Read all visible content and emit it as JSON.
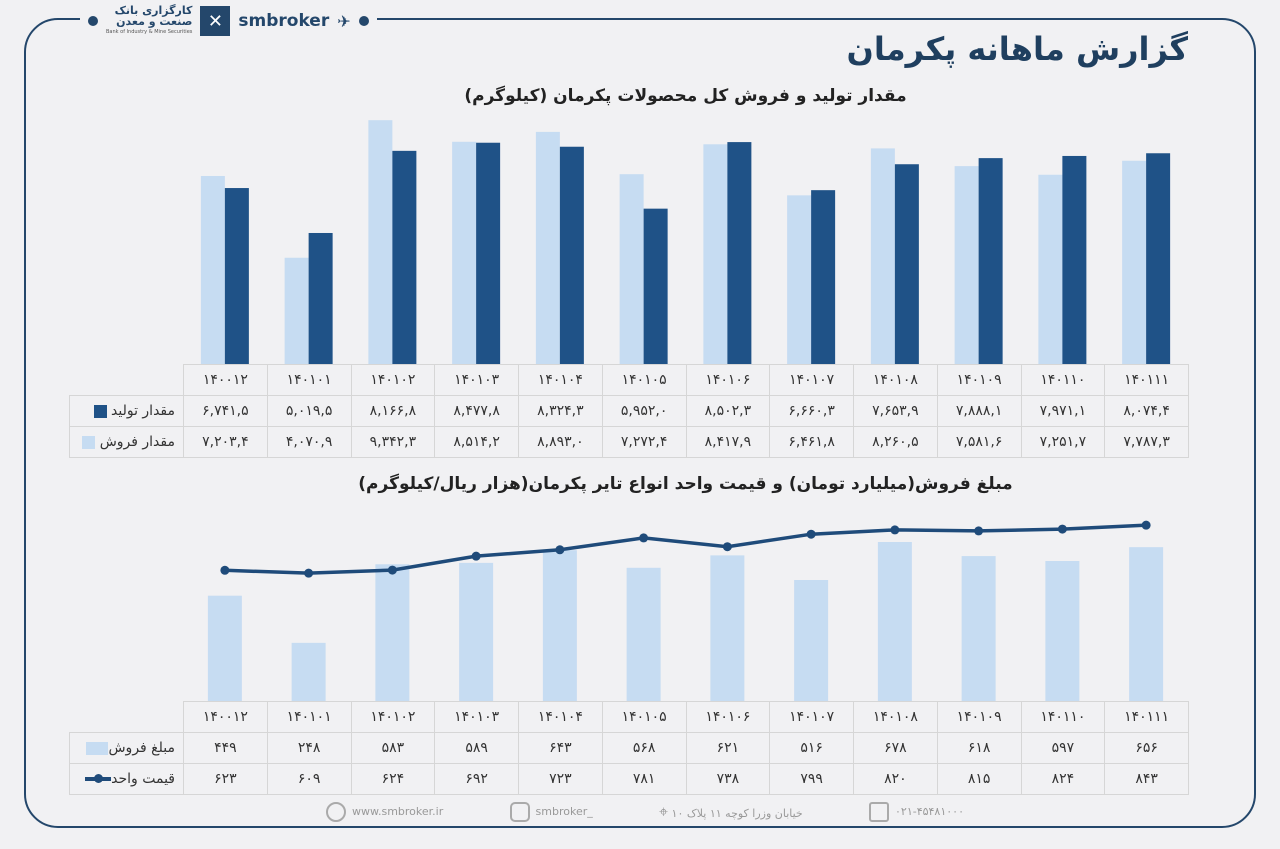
{
  "header": {
    "title": "گزارش ماهانه پکرمان",
    "brand": "smbroker",
    "bank_name_1": "کارگزاری بانک",
    "bank_name_2": "صنعت و معدن",
    "bank_name_en": "Bank of Industry & Mine Securities"
  },
  "colors": {
    "dark": "#1f5287",
    "light": "#c6dcf2",
    "line": "#1f4b7a",
    "frame": "#24476b"
  },
  "chart1": {
    "title": "مقدار تولید و فروش کل محصولات پکرمان (کیلوگرم)",
    "months": [
      "۱۴۰۰۱۲",
      "۱۴۰۱۰۱",
      "۱۴۰۱۰۲",
      "۱۴۰۱۰۳",
      "۱۴۰۱۰۴",
      "۱۴۰۱۰۵",
      "۱۴۰۱۰۶",
      "۱۴۰۱۰۷",
      "۱۴۰۱۰۸",
      "۱۴۰۱۰۹",
      "۱۴۰۱۱۰",
      "۱۴۰۱۱۱"
    ],
    "rows": [
      {
        "label": "مقدار تولید",
        "values": [
          "۶,۷۴۱,۵",
          "۵,۰۱۹,۵",
          "۸,۱۶۶,۸",
          "۸,۴۷۷,۸",
          "۸,۳۲۴,۳",
          "۵,۹۵۲,۰",
          "۸,۵۰۲,۳",
          "۶,۶۶۰,۳",
          "۷,۶۵۳,۹",
          "۷,۸۸۸,۱",
          "۷,۹۷۱,۱",
          "۸,۰۷۴,۴"
        ]
      },
      {
        "label": "مقدار فروش",
        "values": [
          "۷,۲۰۳,۴",
          "۴,۰۷۰,۹",
          "۹,۳۴۲,۳",
          "۸,۵۱۴,۲",
          "۸,۸۹۳,۰",
          "۷,۲۷۲,۴",
          "۸,۴۱۷,۹",
          "۶,۴۶۱,۸",
          "۸,۲۶۰,۵",
          "۷,۵۸۱,۶",
          "۷,۲۵۱,۷",
          "۷,۷۸۷,۳"
        ]
      }
    ]
  },
  "chart2": {
    "title": "مبلغ فروش(میلیارد تومان) و قیمت واحد انواع تایر پکرمان(هزار ریال/کیلوگرم)",
    "rows": [
      {
        "label": "مبلغ فروش",
        "values": [
          "۴۴۹",
          "۲۴۸",
          "۵۸۳",
          "۵۸۹",
          "۶۴۳",
          "۵۶۸",
          "۶۲۱",
          "۵۱۶",
          "۶۷۸",
          "۶۱۸",
          "۵۹۷",
          "۶۵۶"
        ]
      },
      {
        "label": "قیمت واحد",
        "values": [
          "۶۲۳",
          "۶۰۹",
          "۶۲۴",
          "۶۹۲",
          "۷۲۳",
          "۷۸۱",
          "۷۳۸",
          "۷۹۹",
          "۸۲۰",
          "۸۱۵",
          "۸۲۴",
          "۸۴۳"
        ]
      }
    ]
  },
  "chart_data": [
    {
      "type": "bar",
      "title": "مقدار تولید و فروش کل محصولات پکرمان (کیلوگرم)",
      "categories": [
        "140012",
        "140101",
        "140102",
        "140103",
        "140104",
        "140105",
        "140106",
        "140107",
        "140108",
        "140109",
        "140110",
        "140111"
      ],
      "series": [
        {
          "name": "مقدار فروش",
          "values": [
            7203.4,
            4070.9,
            9342.3,
            8514.2,
            8893.0,
            7272.4,
            8417.9,
            6461.8,
            8260.5,
            7581.6,
            7251.7,
            7787.3
          ]
        },
        {
          "name": "مقدار تولید",
          "values": [
            6741.5,
            5019.5,
            8166.8,
            8477.8,
            8324.3,
            5952.0,
            8502.3,
            6660.3,
            7653.9,
            7888.1,
            7971.1,
            8074.4
          ]
        }
      ],
      "grid": false,
      "legend": "table"
    },
    {
      "type": "bar+line",
      "title": "مبلغ فروش(میلیارد تومان) و قیمت واحد انواع تایر پکرمان(هزار ریال/کیلوگرم)",
      "categories": [
        "140012",
        "140101",
        "140102",
        "140103",
        "140104",
        "140105",
        "140106",
        "140107",
        "140108",
        "140109",
        "140110",
        "140111"
      ],
      "series": [
        {
          "name": "مبلغ فروش",
          "type": "bar",
          "values": [
            449,
            248,
            583,
            589,
            643,
            568,
            621,
            516,
            678,
            618,
            597,
            656
          ]
        },
        {
          "name": "قیمت واحد",
          "type": "line",
          "values": [
            623,
            609,
            624,
            692,
            723,
            781,
            738,
            799,
            820,
            815,
            824,
            843
          ]
        }
      ],
      "grid": false,
      "legend": "table"
    }
  ],
  "footer": {
    "website": "www.smbroker.ir",
    "instagram": "smbroker_",
    "address": "خیابان وزرا کوچه ۱۱ پلاک ۱۰",
    "phone": "۰۲۱-۴۵۴۸۱۰۰۰"
  }
}
